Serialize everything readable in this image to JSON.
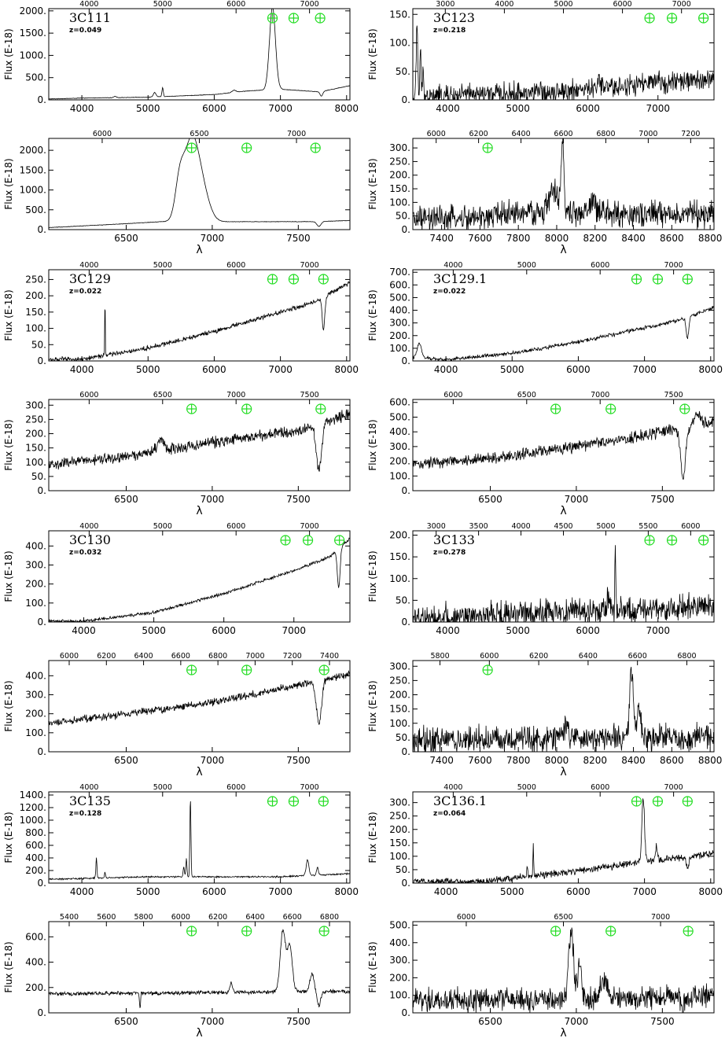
{
  "figure": {
    "ylabel": "Flux (E-18)",
    "xlabel": "λ",
    "telluric_color": "#22dd22"
  },
  "chart_data": [
    {
      "id": "p1",
      "type": "line",
      "source": "3C111",
      "redshift": "z=0.049",
      "xlim": [
        3500,
        8050
      ],
      "xticks": [
        4000,
        5000,
        6000,
        7000,
        8000
      ],
      "top_xticks": [
        4000,
        5000,
        6000,
        7000
      ],
      "ylim": [
        0,
        2050
      ],
      "yticks": [
        0,
        500,
        1000,
        1500,
        2000
      ],
      "telluric_x": [
        6880,
        7200,
        7600
      ],
      "show_xlabel": false,
      "noise": 0.006,
      "base": [
        [
          3500,
          20
        ],
        [
          4000,
          40
        ],
        [
          5000,
          60
        ],
        [
          6000,
          120
        ],
        [
          6500,
          200
        ],
        [
          7000,
          240
        ],
        [
          7600,
          180
        ],
        [
          8050,
          320
        ]
      ],
      "features": [
        [
          6880,
          1850,
          45
        ],
        [
          5100,
          100,
          20
        ],
        [
          5220,
          200,
          10
        ],
        [
          4500,
          30,
          20
        ],
        [
          6300,
          50,
          30
        ]
      ],
      "absorptions": [
        [
          7620,
          100,
          20
        ]
      ]
    },
    {
      "id": "p2",
      "type": "line",
      "source": "3C123",
      "redshift": "z=0.218",
      "xlim": [
        3500,
        7800
      ],
      "xticks": [
        4000,
        5000,
        6000,
        7000
      ],
      "top_xticks": [
        3000,
        4000,
        5000,
        6000,
        7000
      ],
      "ylim": [
        0,
        160
      ],
      "yticks": [
        0,
        50,
        100,
        150
      ],
      "telluric_x": [
        6880,
        7200,
        7650
      ],
      "show_xlabel": false,
      "noise": 0.28,
      "base": [
        [
          3500,
          5
        ],
        [
          5000,
          12
        ],
        [
          6000,
          18
        ],
        [
          7000,
          30
        ],
        [
          7800,
          35
        ]
      ],
      "features": [
        [
          3560,
          130,
          10
        ],
        [
          3610,
          80,
          8
        ],
        [
          3650,
          60,
          8
        ],
        [
          6150,
          25,
          15
        ]
      ],
      "absorptions": []
    },
    {
      "id": "p3",
      "type": "line",
      "source": "",
      "redshift": "",
      "xlim": [
        6050,
        7800
      ],
      "xticks": [
        6500,
        7000,
        7500
      ],
      "top_xticks": [
        6000,
        6500,
        7000
      ],
      "ylim": [
        0,
        2300
      ],
      "yticks": [
        0,
        500,
        1000,
        1500,
        2000
      ],
      "telluric_x": [
        6880,
        7200,
        7600
      ],
      "show_xlabel": true,
      "noise": 0.006,
      "base": [
        [
          6050,
          50
        ],
        [
          6500,
          150
        ],
        [
          6700,
          200
        ],
        [
          7000,
          200
        ],
        [
          7600,
          200
        ],
        [
          7800,
          230
        ]
      ],
      "features": [
        [
          6880,
          2050,
          45
        ],
        [
          6810,
          800,
          25
        ],
        [
          6950,
          500,
          40
        ]
      ],
      "absorptions": [
        [
          7620,
          120,
          12
        ]
      ]
    },
    {
      "id": "p4",
      "type": "line",
      "source": "",
      "redshift": "",
      "xlim": [
        7250,
        8820
      ],
      "xticks": [
        7400,
        7600,
        7800,
        8000,
        8200,
        8400,
        8600,
        8800
      ],
      "top_xticks": [
        6000,
        6200,
        6400,
        6600,
        6800,
        7000,
        7200
      ],
      "ylim": [
        0,
        335
      ],
      "yticks": [
        0,
        50,
        100,
        150,
        200,
        250,
        300
      ],
      "telluric_x": [
        7640
      ],
      "show_xlabel": true,
      "noise": 0.35,
      "base": [
        [
          7250,
          35
        ],
        [
          7600,
          40
        ],
        [
          7700,
          60
        ],
        [
          8820,
          55
        ]
      ],
      "features": [
        [
          8030,
          240,
          8
        ],
        [
          7980,
          80,
          25
        ],
        [
          8190,
          45,
          15
        ]
      ],
      "absorptions": []
    },
    {
      "id": "p5",
      "type": "line",
      "source": "3C129",
      "redshift": "z=0.022",
      "xlim": [
        3500,
        8050
      ],
      "xticks": [
        4000,
        5000,
        6000,
        7000,
        8000
      ],
      "top_xticks": [
        4000,
        5000,
        6000,
        7000
      ],
      "ylim": [
        0,
        280
      ],
      "yticks": [
        0,
        50,
        100,
        150,
        200,
        250
      ],
      "telluric_x": [
        6880,
        7200,
        7650
      ],
      "show_xlabel": false,
      "noise": 0.06,
      "base": [
        [
          3500,
          5
        ],
        [
          4000,
          5
        ],
        [
          5000,
          40
        ],
        [
          6000,
          90
        ],
        [
          7000,
          150
        ],
        [
          7500,
          180
        ],
        [
          8050,
          240
        ]
      ],
      "features": [
        [
          4350,
          190,
          4
        ]
      ],
      "absorptions": [
        [
          7650,
          100,
          20
        ]
      ]
    },
    {
      "id": "p6",
      "type": "line",
      "source": "3C129.1",
      "redshift": "z=0.022",
      "xlim": [
        3500,
        8050
      ],
      "xticks": [
        4000,
        5000,
        6000,
        7000,
        8000
      ],
      "top_xticks": [
        4000,
        5000,
        6000,
        7000
      ],
      "ylim": [
        0,
        720
      ],
      "yticks": [
        0,
        100,
        200,
        300,
        400,
        500,
        600,
        700
      ],
      "telluric_x": [
        6880,
        7200,
        7650
      ],
      "show_xlabel": false,
      "noise": 0.05,
      "base": [
        [
          3500,
          30
        ],
        [
          4000,
          10
        ],
        [
          5000,
          60
        ],
        [
          6000,
          150
        ],
        [
          7000,
          260
        ],
        [
          7500,
          320
        ],
        [
          8050,
          420
        ]
      ],
      "features": [
        [
          3600,
          120,
          30
        ]
      ],
      "absorptions": [
        [
          7650,
          170,
          20
        ]
      ]
    },
    {
      "id": "p7",
      "type": "line",
      "source": "",
      "redshift": "",
      "xlim": [
        6050,
        7800
      ],
      "xticks": [
        6500,
        7000,
        7500
      ],
      "top_xticks": [
        6000,
        6500,
        7000,
        7500
      ],
      "ylim": [
        0,
        320
      ],
      "yticks": [
        0,
        50,
        100,
        150,
        200,
        250,
        300
      ],
      "telluric_x": [
        6880,
        7200,
        7630
      ],
      "show_xlabel": true,
      "noise": 0.14,
      "base": [
        [
          6050,
          90
        ],
        [
          6500,
          120
        ],
        [
          7000,
          170
        ],
        [
          7500,
          210
        ],
        [
          7800,
          270
        ]
      ],
      "features": [
        [
          6700,
          40,
          20
        ]
      ],
      "absorptions": [
        [
          7620,
          160,
          15
        ]
      ]
    },
    {
      "id": "p8",
      "type": "line",
      "source": "",
      "redshift": "",
      "xlim": [
        6050,
        7800
      ],
      "xticks": [
        6500,
        7000,
        7500
      ],
      "top_xticks": [
        6000,
        6500,
        7000,
        7500
      ],
      "ylim": [
        0,
        620
      ],
      "yticks": [
        0,
        100,
        200,
        300,
        400,
        500,
        600
      ],
      "telluric_x": [
        6880,
        7200,
        7630
      ],
      "show_xlabel": true,
      "noise": 0.15,
      "base": [
        [
          6050,
          180
        ],
        [
          6500,
          220
        ],
        [
          7000,
          300
        ],
        [
          7500,
          400
        ],
        [
          7800,
          470
        ]
      ],
      "features": [
        [
          7700,
          80,
          20
        ]
      ],
      "absorptions": [
        [
          7620,
          330,
          15
        ]
      ]
    },
    {
      "id": "p9",
      "type": "line",
      "source": "3C130",
      "redshift": "z=0.032",
      "xlim": [
        3500,
        7800
      ],
      "xticks": [
        4000,
        5000,
        6000,
        7000
      ],
      "top_xticks": [
        4000,
        5000,
        6000,
        7000
      ],
      "ylim": [
        0,
        480
      ],
      "yticks": [
        0,
        100,
        200,
        300,
        400
      ],
      "telluric_x": [
        6880,
        7200,
        7650
      ],
      "show_xlabel": false,
      "noise": 0.04,
      "base": [
        [
          3500,
          5
        ],
        [
          4000,
          5
        ],
        [
          5000,
          50
        ],
        [
          6000,
          150
        ],
        [
          7000,
          270
        ],
        [
          7500,
          340
        ],
        [
          7800,
          440
        ]
      ],
      "features": [],
      "absorptions": [
        [
          7640,
          200,
          20
        ]
      ]
    },
    {
      "id": "p10",
      "type": "line",
      "source": "3C133",
      "redshift": "z=0.278",
      "xlim": [
        3500,
        7800
      ],
      "xticks": [
        4000,
        5000,
        6000,
        7000
      ],
      "top_xticks": [
        3000,
        3500,
        4000,
        4500,
        5000,
        5500,
        6000
      ],
      "ylim": [
        0,
        210
      ],
      "yticks": [
        0,
        50,
        100,
        150,
        200
      ],
      "telluric_x": [
        6880,
        7200,
        7650
      ],
      "show_xlabel": false,
      "noise": 0.35,
      "base": [
        [
          3500,
          10
        ],
        [
          5000,
          20
        ],
        [
          6000,
          25
        ],
        [
          7000,
          30
        ],
        [
          7800,
          35
        ]
      ],
      "features": [
        [
          6390,
          170,
          6
        ],
        [
          6300,
          40,
          20
        ]
      ],
      "absorptions": []
    },
    {
      "id": "p11",
      "type": "line",
      "source": "",
      "redshift": "",
      "xlim": [
        6050,
        7800
      ],
      "xticks": [
        6500,
        7000,
        7500
      ],
      "top_xticks": [
        6000,
        6200,
        6400,
        6600,
        6800,
        7000,
        7200,
        7400
      ],
      "ylim": [
        0,
        480
      ],
      "yticks": [
        0,
        100,
        200,
        300,
        400
      ],
      "telluric_x": [
        6880,
        7200,
        7650
      ],
      "show_xlabel": true,
      "noise": 0.1,
      "base": [
        [
          6050,
          150
        ],
        [
          6500,
          200
        ],
        [
          7000,
          260
        ],
        [
          7500,
          350
        ],
        [
          7800,
          410
        ]
      ],
      "features": [],
      "absorptions": [
        [
          7620,
          220,
          15
        ]
      ]
    },
    {
      "id": "p12",
      "type": "line",
      "source": "",
      "redshift": "",
      "xlim": [
        7250,
        8820
      ],
      "xticks": [
        7400,
        7600,
        7800,
        8000,
        8200,
        8400,
        8600,
        8800
      ],
      "top_xticks": [
        5800,
        6000,
        6200,
        6400,
        6600,
        6800
      ],
      "ylim": [
        0,
        320
      ],
      "yticks": [
        0,
        50,
        100,
        150,
        200,
        250,
        300
      ],
      "telluric_x": [
        7640
      ],
      "show_xlabel": true,
      "noise": 0.35,
      "base": [
        [
          7250,
          40
        ],
        [
          8820,
          50
        ]
      ],
      "features": [
        [
          8390,
          230,
          10
        ],
        [
          8430,
          100,
          10
        ],
        [
          8040,
          40,
          20
        ]
      ],
      "absorptions": []
    },
    {
      "id": "p13",
      "type": "line",
      "source": "3C135",
      "redshift": "z=0.128",
      "xlim": [
        3500,
        8050
      ],
      "xticks": [
        4000,
        5000,
        6000,
        7000,
        8000
      ],
      "top_xticks": [
        4000,
        5000,
        6000,
        7000
      ],
      "ylim": [
        0,
        1450
      ],
      "yticks": [
        0,
        200,
        400,
        600,
        800,
        1000,
        1200,
        1400
      ],
      "telluric_x": [
        6880,
        7200,
        7650
      ],
      "show_xlabel": false,
      "noise": 0.02,
      "base": [
        [
          3500,
          60
        ],
        [
          5000,
          100
        ],
        [
          6000,
          100
        ],
        [
          7000,
          100
        ],
        [
          8050,
          150
        ]
      ],
      "features": [
        [
          5640,
          1250,
          8
        ],
        [
          5580,
          300,
          8
        ],
        [
          5540,
          150,
          10
        ],
        [
          4220,
          320,
          8
        ],
        [
          4350,
          90,
          8
        ],
        [
          7410,
          250,
          20
        ],
        [
          7560,
          120,
          15
        ]
      ],
      "absorptions": []
    },
    {
      "id": "p14",
      "type": "line",
      "source": "3C136.1",
      "redshift": "z=0.064",
      "xlim": [
        3500,
        8050
      ],
      "xticks": [
        4000,
        5000,
        6000,
        7000,
        8000
      ],
      "top_xticks": [
        4000,
        5000,
        6000,
        7000
      ],
      "ylim": [
        0,
        340
      ],
      "yticks": [
        0,
        50,
        100,
        150,
        200,
        250,
        300
      ],
      "telluric_x": [
        6880,
        7200,
        7650
      ],
      "show_xlabel": false,
      "noise": 0.09,
      "base": [
        [
          3500,
          5
        ],
        [
          4500,
          5
        ],
        [
          5000,
          20
        ],
        [
          6000,
          45
        ],
        [
          7000,
          80
        ],
        [
          8050,
          110
        ]
      ],
      "features": [
        [
          6980,
          240,
          20
        ],
        [
          5320,
          130,
          5
        ],
        [
          5230,
          40,
          8
        ],
        [
          7180,
          50,
          12
        ]
      ],
      "absorptions": [
        [
          7650,
          40,
          20
        ]
      ]
    },
    {
      "id": "p15",
      "type": "line",
      "source": "",
      "redshift": "",
      "xlim": [
        6050,
        7800
      ],
      "xticks": [
        6500,
        7000,
        7500
      ],
      "top_xticks": [
        5400,
        5600,
        5800,
        6000,
        6200,
        6400,
        6600,
        6800
      ],
      "ylim": [
        0,
        720
      ],
      "yticks": [
        0,
        200,
        400,
        600
      ],
      "telluric_x": [
        6880,
        7200,
        7650
      ],
      "show_xlabel": true,
      "noise": 0.05,
      "base": [
        [
          6050,
          150
        ],
        [
          7000,
          160
        ],
        [
          7800,
          170
        ]
      ],
      "features": [
        [
          7410,
          480,
          15
        ],
        [
          7450,
          360,
          15
        ],
        [
          7580,
          140,
          12
        ],
        [
          7110,
          70,
          8
        ]
      ],
      "absorptions": [
        [
          7620,
          110,
          10
        ],
        [
          6580,
          120,
          3
        ]
      ]
    },
    {
      "id": "p16",
      "type": "line",
      "source": "",
      "redshift": "",
      "xlim": [
        6050,
        7800
      ],
      "xticks": [
        6500,
        7000,
        7500
      ],
      "top_xticks": [
        6000,
        6500,
        7000
      ],
      "ylim": [
        0,
        520
      ],
      "yticks": [
        0,
        100,
        200,
        300,
        400,
        500
      ],
      "telluric_x": [
        6880,
        7200,
        7650
      ],
      "show_xlabel": true,
      "noise": 0.3,
      "base": [
        [
          6050,
          70
        ],
        [
          7000,
          80
        ],
        [
          7800,
          100
        ]
      ],
      "features": [
        [
          6970,
          380,
          15
        ],
        [
          7020,
          220,
          10
        ],
        [
          7160,
          100,
          20
        ]
      ],
      "absorptions": [
        [
          7620,
          50,
          15
        ]
      ]
    }
  ]
}
